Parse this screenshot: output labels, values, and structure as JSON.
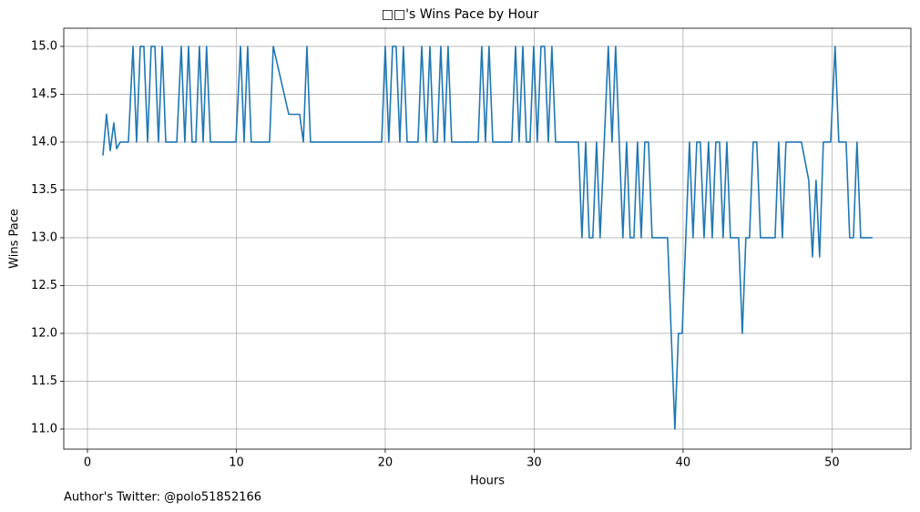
{
  "chart_data": {
    "type": "line",
    "title": "□□'s Wins Pace by Hour",
    "xlabel": "Hours",
    "ylabel": "Wins Pace",
    "footnote": "Author's Twitter: @polo51852166",
    "color": "#1f77b4",
    "grid": true,
    "xlim": [
      -1.59,
      55.3
    ],
    "ylim": [
      10.79,
      15.19
    ],
    "xticks": [
      0,
      10,
      20,
      30,
      40,
      50
    ],
    "yticks": [
      {
        "value": 11,
        "label": "11.0"
      },
      {
        "value": 11.5,
        "label": "11.5"
      },
      {
        "value": 12,
        "label": "12.0"
      },
      {
        "value": 12.5,
        "label": "12.5"
      },
      {
        "value": 13,
        "label": "13.0"
      },
      {
        "value": 13.5,
        "label": "13.5"
      },
      {
        "value": 14,
        "label": "14.0"
      },
      {
        "value": 14.5,
        "label": "14.5"
      },
      {
        "value": 15,
        "label": "15.0"
      }
    ],
    "x": [
      1.04,
      1.28,
      1.53,
      1.77,
      1.96,
      2.2,
      2.75,
      3.06,
      3.3,
      3.55,
      3.79,
      4.04,
      4.28,
      4.53,
      4.77,
      5.02,
      5.26,
      6.0,
      6.3,
      6.54,
      6.79,
      7.03,
      7.28,
      7.52,
      7.77,
      8.0,
      8.26,
      9.97,
      10.28,
      10.52,
      10.76,
      11.0,
      12.23,
      12.48,
      13.52,
      14.25,
      14.5,
      14.74,
      14.98,
      19.76,
      20.0,
      20.24,
      20.49,
      20.73,
      20.98,
      21.22,
      21.47,
      22.2,
      22.45,
      22.75,
      23.0,
      23.24,
      23.49,
      23.73,
      23.98,
      24.22,
      24.46,
      26.24,
      26.48,
      26.73,
      26.97,
      27.22,
      28.5,
      28.75,
      28.99,
      29.24,
      29.48,
      29.72,
      29.97,
      30.21,
      30.46,
      30.7,
      30.95,
      31.19,
      31.44,
      32.97,
      33.21,
      33.46,
      33.7,
      33.94,
      34.19,
      34.43,
      34.98,
      35.23,
      35.47,
      35.96,
      36.21,
      36.45,
      36.7,
      36.94,
      37.19,
      37.43,
      37.68,
      37.92,
      38.96,
      39.45,
      39.69,
      39.94,
      40.43,
      40.67,
      40.92,
      41.16,
      41.41,
      41.71,
      41.96,
      42.2,
      42.45,
      42.69,
      42.94,
      43.18,
      43.73,
      43.98,
      44.22,
      44.46,
      44.71,
      44.95,
      45.2,
      46.18,
      46.42,
      46.67,
      46.91,
      47.95,
      48.44,
      48.69,
      48.93,
      49.17,
      49.42,
      49.91,
      50.21,
      50.46,
      50.95,
      51.19,
      51.44,
      51.68,
      51.93,
      52.72
    ],
    "values": [
      13.86,
      14.29,
      13.91,
      14.2,
      13.93,
      14,
      14,
      15,
      14,
      15,
      15,
      14,
      15,
      15,
      14,
      15,
      14,
      14,
      15,
      14,
      15,
      14,
      14,
      15,
      14,
      15,
      14,
      14,
      15,
      14,
      15,
      14,
      14,
      15,
      14.29,
      14.29,
      14,
      15,
      14,
      14,
      15,
      14,
      15,
      15,
      14,
      15,
      14,
      14,
      15,
      14,
      15,
      14,
      14,
      15,
      14,
      15,
      14,
      14,
      15,
      14,
      15,
      14,
      14,
      15,
      14,
      15,
      14,
      14,
      15,
      14,
      15,
      15,
      14,
      15,
      14,
      14,
      13,
      14,
      13,
      13,
      14,
      13,
      15,
      14,
      15,
      13,
      14,
      13,
      13,
      14,
      13,
      14,
      14,
      13,
      13,
      11,
      12,
      12,
      14,
      13,
      14,
      14,
      13,
      14,
      13,
      14,
      14,
      13,
      14,
      13,
      13,
      12,
      13,
      13,
      14,
      14,
      13,
      13,
      14,
      13,
      14,
      14,
      13.6,
      12.8,
      13.6,
      12.8,
      14,
      14,
      15,
      14,
      14,
      13,
      13,
      14,
      13,
      13
    ]
  }
}
